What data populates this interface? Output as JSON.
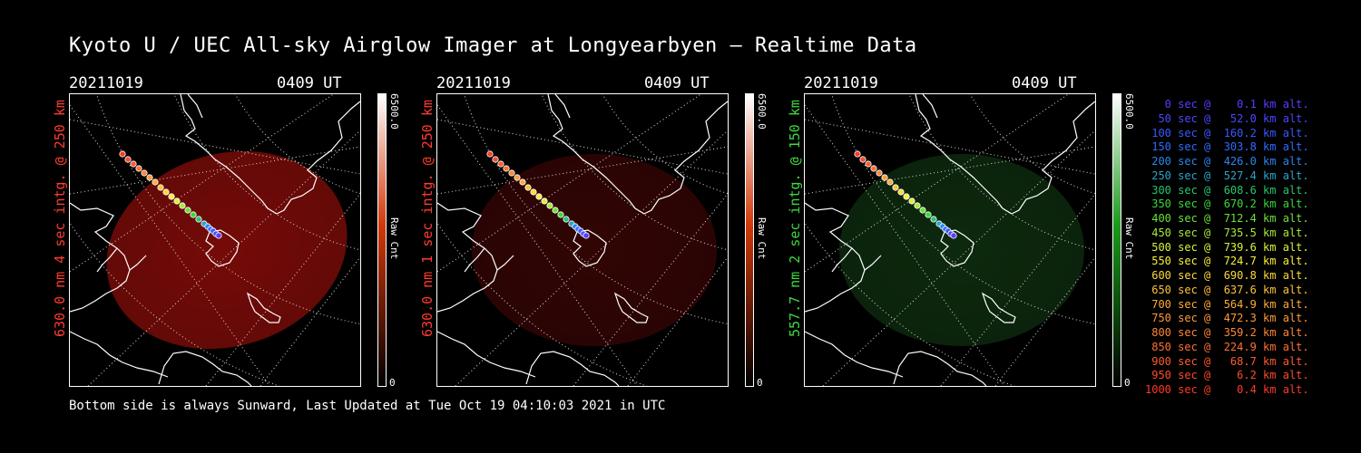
{
  "title": "Kyoto U / UEC All-sky Airglow Imager at Longyearbyen — Realtime Data",
  "footer": "Bottom side is always Sunward, Last Updated at Tue Oct 19 04:10:03 2021 in UTC",
  "panels": [
    {
      "date": "20211019",
      "time": "0409 UT",
      "side_label": "630.0 nm 4 sec intg. @ 250 km",
      "label_color": "#ff3b2f",
      "glow_color": "#8a0d0a",
      "glow_opacity": 0.85,
      "colorbar": {
        "max": "6500.0",
        "unit": "Raw Cnt",
        "min": "0",
        "top_color": "#ffffff",
        "mid_color": "#d1380a",
        "bottom_color": "#000000"
      }
    },
    {
      "date": "20211019",
      "time": "0409 UT",
      "side_label": "630.0 nm 1 sec intg. @ 250 km",
      "label_color": "#ff3b2f",
      "glow_color": "#3a0605",
      "glow_opacity": 0.85,
      "colorbar": {
        "max": "6500.0",
        "unit": "Raw Cnt",
        "min": "0",
        "top_color": "#ffffff",
        "mid_color": "#d1380a",
        "bottom_color": "#000000"
      }
    },
    {
      "date": "20211019",
      "time": "0409 UT",
      "side_label": "557.7 nm 2 sec intg. @ 150 km",
      "label_color": "#3fd83f",
      "glow_color": "#0f3010",
      "glow_opacity": 0.85,
      "colorbar": {
        "max": "6500.0",
        "unit": "Raw Cnt",
        "min": "0",
        "top_color": "#ffffff",
        "mid_color": "#1a9a1a",
        "bottom_color": "#000000"
      }
    }
  ],
  "legend": [
    {
      "text": "   0 sec @    0.1 km alt.",
      "color": "#5a3cff"
    },
    {
      "text": "  50 sec @   52.0 km alt.",
      "color": "#4a48ff"
    },
    {
      "text": " 100 sec @  160.2 km alt.",
      "color": "#3c58ff"
    },
    {
      "text": " 150 sec @  303.8 km alt.",
      "color": "#2f6cff"
    },
    {
      "text": " 200 sec @  426.0 km alt.",
      "color": "#2a86f0"
    },
    {
      "text": " 250 sec @  527.4 km alt.",
      "color": "#2aa6c8"
    },
    {
      "text": " 300 sec @  608.6 km alt.",
      "color": "#28c470"
    },
    {
      "text": " 350 sec @  670.2 km alt.",
      "color": "#3ad83a"
    },
    {
      "text": " 400 sec @  712.4 km alt.",
      "color": "#6ee03a"
    },
    {
      "text": " 450 sec @  735.5 km alt.",
      "color": "#a8ea3a"
    },
    {
      "text": " 500 sec @  739.6 km alt.",
      "color": "#dcf03a"
    },
    {
      "text": " 550 sec @  724.7 km alt.",
      "color": "#f8f03a"
    },
    {
      "text": " 600 sec @  690.8 km alt.",
      "color": "#ffd83a"
    },
    {
      "text": " 650 sec @  637.6 km alt.",
      "color": "#ffc23a"
    },
    {
      "text": " 700 sec @  564.9 km alt.",
      "color": "#ffac3a"
    },
    {
      "text": " 750 sec @  472.3 km alt.",
      "color": "#ff9a38"
    },
    {
      "text": " 800 sec @  359.2 km alt.",
      "color": "#ff8636"
    },
    {
      "text": " 850 sec @  224.9 km alt.",
      "color": "#ff7032"
    },
    {
      "text": " 900 sec @   68.7 km alt.",
      "color": "#ff5a2e"
    },
    {
      "text": " 950 sec @    6.2 km alt.",
      "color": "#ff4a2a"
    },
    {
      "text": "1000 sec @    0.4 km alt.",
      "color": "#ff3a26"
    }
  ]
}
